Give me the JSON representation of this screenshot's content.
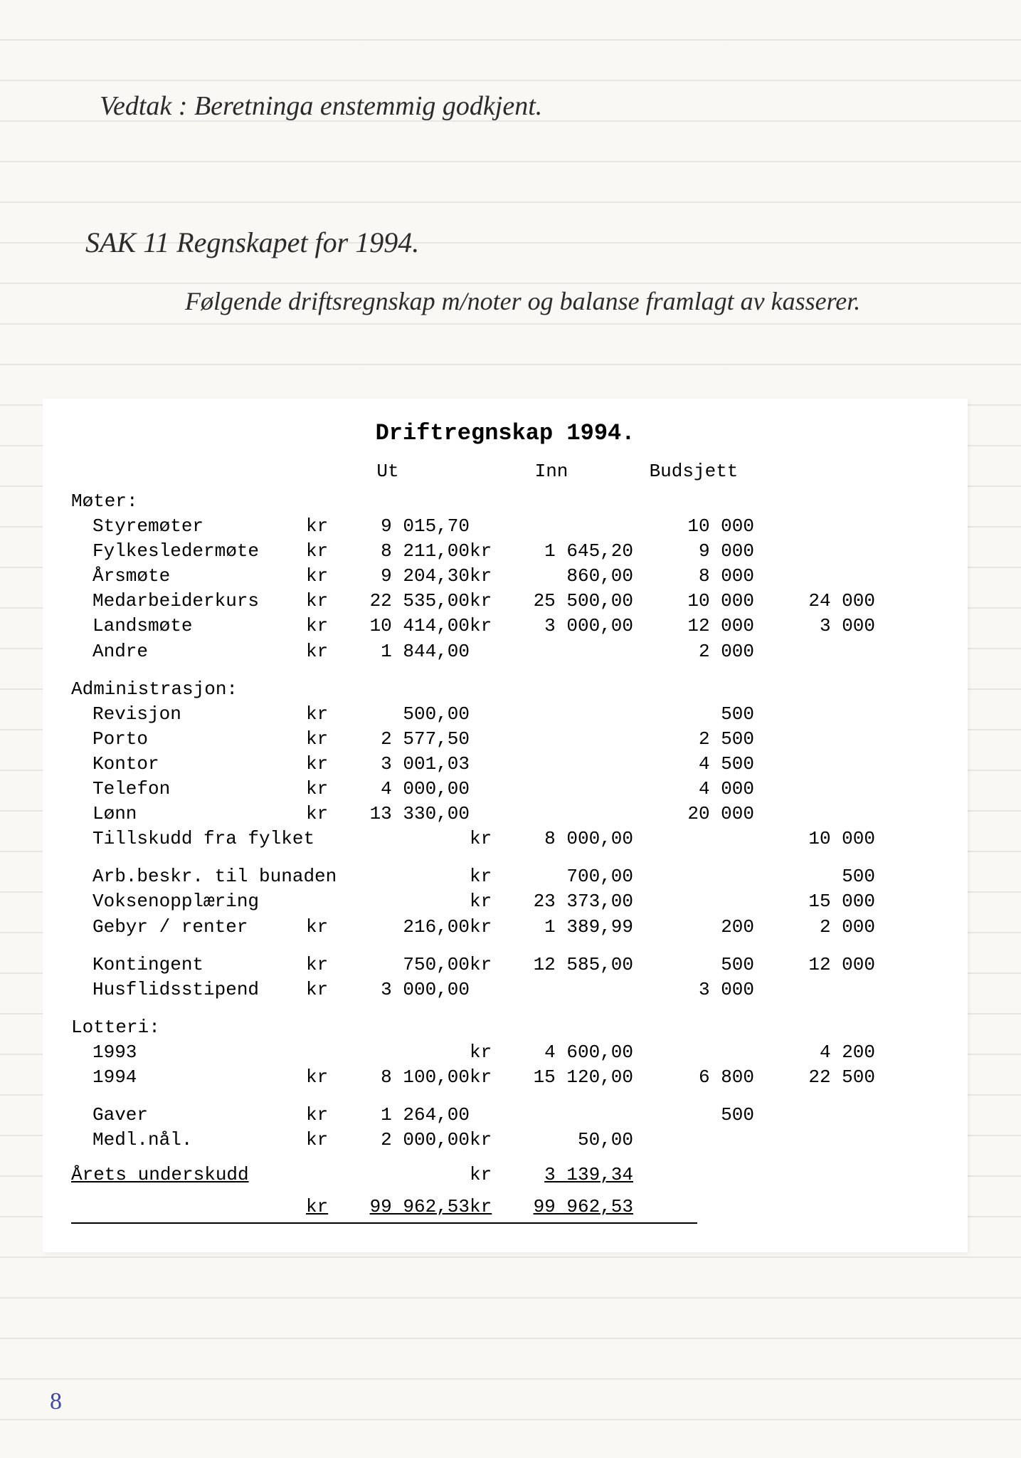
{
  "handwriting": {
    "line1": "Vedtak : Beretninga enstemmig godkjent.",
    "line2": "SAK 11   Regnskapet for 1994.",
    "line3": "Følgende driftsregnskap m/noter og balanse framlagt av kasserer."
  },
  "title": "Driftregnskap 1994.",
  "columns": {
    "c1": "",
    "c2": "Ut",
    "c3": "Inn",
    "c4": "Budsjett",
    "c5": ""
  },
  "sections": [
    {
      "header": "Møter:",
      "rows": [
        {
          "label": "Styremøter",
          "ut_cur": "kr",
          "ut": "9 015,70",
          "in_cur": "",
          "in": "",
          "b1": "10 000",
          "b2": ""
        },
        {
          "label": "Fylkesledermøte",
          "ut_cur": "kr",
          "ut": "8 211,00",
          "in_cur": "kr",
          "in": "1 645,20",
          "b1": "9 000",
          "b2": ""
        },
        {
          "label": "Årsmøte",
          "ut_cur": "kr",
          "ut": "9 204,30",
          "in_cur": "kr",
          "in": "860,00",
          "b1": "8 000",
          "b2": ""
        },
        {
          "label": "Medarbeiderkurs",
          "ut_cur": "kr",
          "ut": "22 535,00",
          "in_cur": "kr",
          "in": "25 500,00",
          "b1": "10 000",
          "b2": "24 000"
        },
        {
          "label": "Landsmøte",
          "ut_cur": "kr",
          "ut": "10 414,00",
          "in_cur": "kr",
          "in": "3 000,00",
          "b1": "12 000",
          "b2": "3 000"
        },
        {
          "label": "Andre",
          "ut_cur": "kr",
          "ut": "1 844,00",
          "in_cur": "",
          "in": "",
          "b1": "2 000",
          "b2": ""
        }
      ]
    },
    {
      "header": "Administrasjon:",
      "rows": [
        {
          "label": "Revisjon",
          "ut_cur": "kr",
          "ut": "500,00",
          "in_cur": "",
          "in": "",
          "b1": "500",
          "b2": ""
        },
        {
          "label": "Porto",
          "ut_cur": "kr",
          "ut": "2 577,50",
          "in_cur": "",
          "in": "",
          "b1": "2 500",
          "b2": ""
        },
        {
          "label": "Kontor",
          "ut_cur": "kr",
          "ut": "3 001,03",
          "in_cur": "",
          "in": "",
          "b1": "4 500",
          "b2": ""
        },
        {
          "label": "Telefon",
          "ut_cur": "kr",
          "ut": "4 000,00",
          "in_cur": "",
          "in": "",
          "b1": "4 000",
          "b2": ""
        },
        {
          "label": "Lønn",
          "ut_cur": "kr",
          "ut": "13 330,00",
          "in_cur": "",
          "in": "",
          "b1": "20 000",
          "b2": ""
        },
        {
          "label": "Tillskudd fra fylket",
          "ut_cur": "",
          "ut": "",
          "in_cur": "kr",
          "in": "8 000,00",
          "b1": "",
          "b2": "10 000"
        }
      ]
    },
    {
      "header": "",
      "rows": [
        {
          "label": "Arb.beskr. til bunaden",
          "ut_cur": "",
          "ut": "",
          "in_cur": "kr",
          "in": "700,00",
          "b1": "",
          "b2": "500"
        },
        {
          "label": "Voksenopplæring",
          "ut_cur": "",
          "ut": "",
          "in_cur": "kr",
          "in": "23 373,00",
          "b1": "",
          "b2": "15 000"
        },
        {
          "label": "Gebyr / renter",
          "ut_cur": "kr",
          "ut": "216,00",
          "in_cur": "kr",
          "in": "1 389,99",
          "b1": "200",
          "b2": "2 000"
        }
      ]
    },
    {
      "header": "",
      "rows": [
        {
          "label": "Kontingent",
          "ut_cur": "kr",
          "ut": "750,00",
          "in_cur": "kr",
          "in": "12 585,00",
          "b1": "500",
          "b2": "12 000"
        },
        {
          "label": "Husflidsstipend",
          "ut_cur": "kr",
          "ut": "3 000,00",
          "in_cur": "",
          "in": "",
          "b1": "3 000",
          "b2": ""
        }
      ]
    },
    {
      "header": "Lotteri:",
      "rows": [
        {
          "label": "1993",
          "ut_cur": "",
          "ut": "",
          "in_cur": "kr",
          "in": "4 600,00",
          "b1": "",
          "b2": "4 200"
        },
        {
          "label": "1994",
          "ut_cur": "kr",
          "ut": "8 100,00",
          "in_cur": "kr",
          "in": "15 120,00",
          "b1": "6 800",
          "b2": "22 500"
        }
      ]
    },
    {
      "header": "",
      "rows": [
        {
          "label": "Gaver",
          "ut_cur": "kr",
          "ut": "1 264,00",
          "in_cur": "",
          "in": "",
          "b1": "500",
          "b2": ""
        },
        {
          "label": "Medl.nål.",
          "ut_cur": "kr",
          "ut": "2 000,00",
          "in_cur": "kr",
          "in": "50,00",
          "b1": "",
          "b2": ""
        }
      ]
    }
  ],
  "deficit": {
    "label": "Årets underskudd",
    "in_cur": "kr",
    "in": "3 139,34"
  },
  "totals": {
    "ut_cur": "kr",
    "ut": "99 962,53",
    "in_cur": "kr",
    "in": "99 962,53"
  },
  "page_number": "8",
  "style": {
    "mono_fontsize": 26,
    "title_fontsize": 32,
    "hand_fontsize": 38,
    "bg": "#f9f8f4",
    "sheet_bg": "#ffffff",
    "rule_color": "#d8d6cf",
    "text_color": "#000000"
  }
}
